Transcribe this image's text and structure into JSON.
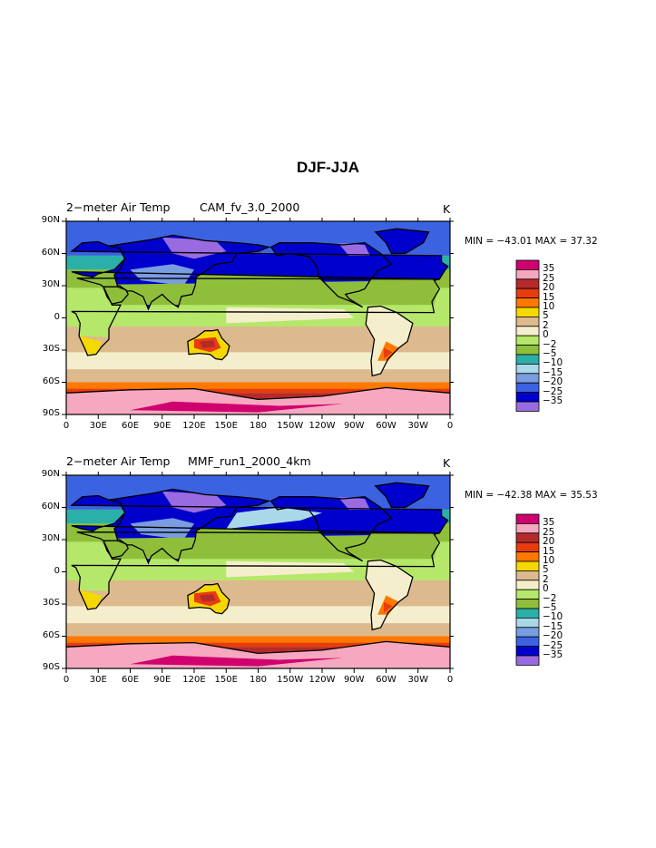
{
  "figure_title": "DJF-JJA",
  "units_label": "K",
  "x_ticks": [
    "0",
    "30E",
    "60E",
    "90E",
    "120E",
    "150E",
    "180",
    "150W",
    "120W",
    "90W",
    "60W",
    "30W",
    "0"
  ],
  "y_ticks": [
    "90N",
    "60N",
    "30N",
    "0",
    "30S",
    "60S",
    "90S"
  ],
  "colorbar": {
    "labels": [
      "35",
      "25",
      "20",
      "15",
      "10",
      "5",
      "2",
      "0",
      "−2",
      "−5",
      "−10",
      "−15",
      "−20",
      "−25",
      "−35"
    ],
    "colors": [
      "#d0006e",
      "#f6a8c0",
      "#b52a2a",
      "#e83c0e",
      "#ff7800",
      "#f5d800",
      "#ddb98e",
      "#f5eecc",
      "#b5e86a",
      "#8fbf3a",
      "#2ab0a8",
      "#a9d8e8",
      "#7a9ce0",
      "#3b62e0",
      "#0000cc",
      "#9a6be0"
    ]
  },
  "panels": [
    {
      "variable": "2−meter Air Temp",
      "case": "CAM_fv_3.0_2000",
      "units": "K",
      "min_label": "MIN = −43.01 MAX =  37.32"
    },
    {
      "variable": "2−meter Air Temp",
      "case": "MMF_run1_2000_4km",
      "units": "K",
      "min_label": "MIN = −42.38 MAX =  35.53"
    }
  ],
  "map_style": {
    "ocean_tropics": "#b5e86a",
    "ocean_south": "#ddb98e",
    "antarctica": "#f6a8c0",
    "arctic": "#0000cc",
    "coast": "#000000"
  }
}
